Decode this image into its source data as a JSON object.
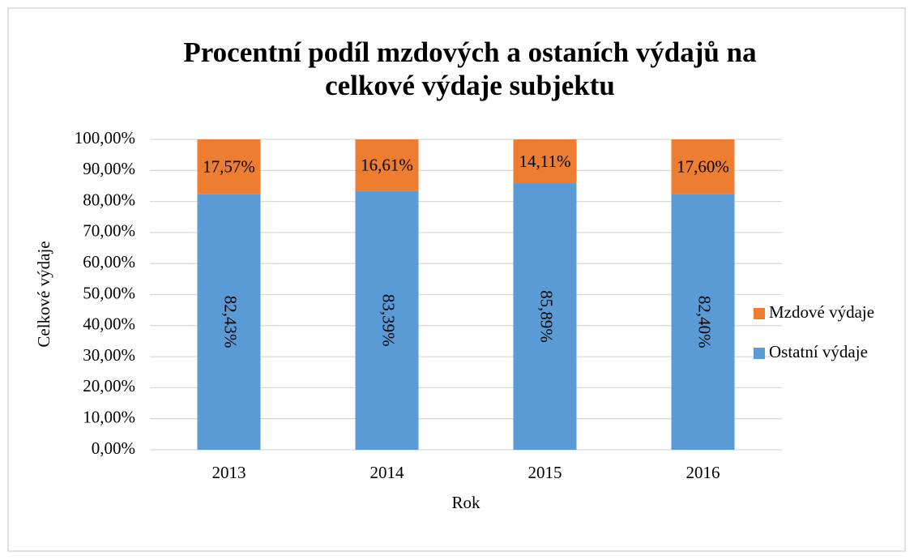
{
  "chart_data": {
    "type": "stacked_bar",
    "title": "Procentní podíl mzdových a ostaních výdajů na celkové výdaje subjektu",
    "x_label": "Rok",
    "y_label": "Celkové výdaje",
    "categories": [
      "2013",
      "2014",
      "2015",
      "2016"
    ],
    "series": [
      {
        "name": "Ostatní výdaje",
        "color": "#5b9bd5",
        "values": [
          82.43,
          83.39,
          85.89,
          82.4
        ],
        "value_labels": [
          "82,43%",
          "83,39%",
          "85,89%",
          "82,40%"
        ]
      },
      {
        "name": "Mzdové výdaje",
        "color": "#ed7d31",
        "values": [
          17.57,
          16.61,
          14.11,
          17.6
        ],
        "value_labels": [
          "17,57%",
          "16,61%",
          "14,11%",
          "17,60%"
        ]
      }
    ],
    "ylim": [
      0,
      100
    ],
    "yticks": [
      {
        "value": 0,
        "label": "0,00%"
      },
      {
        "value": 10,
        "label": "10,00%"
      },
      {
        "value": 20,
        "label": "20,00%"
      },
      {
        "value": 30,
        "label": "30,00%"
      },
      {
        "value": 40,
        "label": "40,00%"
      },
      {
        "value": 50,
        "label": "50,00%"
      },
      {
        "value": 60,
        "label": "60,00%"
      },
      {
        "value": 70,
        "label": "70,00%"
      },
      {
        "value": 80,
        "label": "80,00%"
      },
      {
        "value": 90,
        "label": "90,00%"
      },
      {
        "value": 100,
        "label": "100,00%"
      }
    ],
    "grid": true,
    "legend": "right"
  }
}
